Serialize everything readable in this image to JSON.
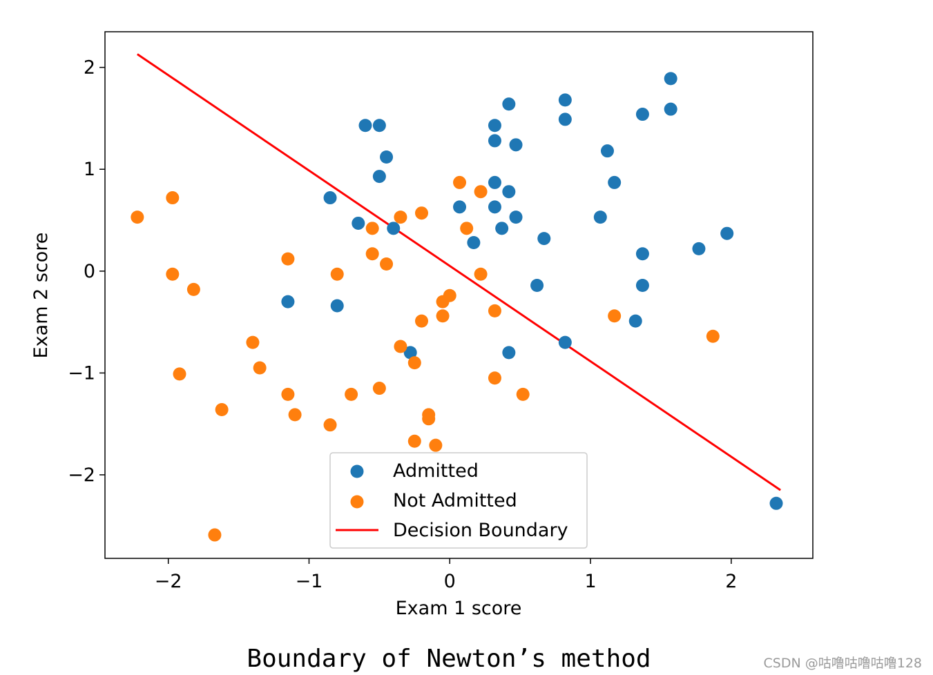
{
  "chart_data": {
    "type": "scatter",
    "title": "",
    "xlabel": "Exam 1 score",
    "ylabel": "Exam 2 score",
    "xlim": [
      -2.45,
      2.58
    ],
    "ylim": [
      -2.82,
      2.35
    ],
    "xticks": [
      -2,
      -1,
      0,
      1,
      2
    ],
    "yticks": [
      -2,
      -1,
      0,
      1,
      2
    ],
    "xtick_labels": [
      "−2",
      "−1",
      "0",
      "1",
      "2"
    ],
    "ytick_labels": [
      "−2",
      "−1",
      "0",
      "1",
      "2"
    ],
    "colors": {
      "admitted": "#1f77b4",
      "not_admitted": "#ff7f0e",
      "boundary": "#ff0000"
    },
    "legend_position": "lower-center",
    "series": [
      {
        "name": "Admitted",
        "kind": "scatter",
        "color": "#1f77b4",
        "points": [
          [
            -0.6,
            1.43
          ],
          [
            -0.5,
            1.43
          ],
          [
            -0.45,
            1.12
          ],
          [
            -0.5,
            0.93
          ],
          [
            -0.85,
            0.72
          ],
          [
            -0.65,
            0.47
          ],
          [
            -0.4,
            0.42
          ],
          [
            -1.15,
            -0.3
          ],
          [
            -0.8,
            -0.34
          ],
          [
            -0.28,
            -0.8
          ],
          [
            0.32,
            1.43
          ],
          [
            0.32,
            1.28
          ],
          [
            0.42,
            1.64
          ],
          [
            0.47,
            1.24
          ],
          [
            0.32,
            0.87
          ],
          [
            0.42,
            0.78
          ],
          [
            0.07,
            0.63
          ],
          [
            0.32,
            0.63
          ],
          [
            0.47,
            0.53
          ],
          [
            0.37,
            0.42
          ],
          [
            0.17,
            0.28
          ],
          [
            0.67,
            0.32
          ],
          [
            0.62,
            -0.14
          ],
          [
            0.42,
            -0.8
          ],
          [
            0.82,
            -0.7
          ],
          [
            0.82,
            1.68
          ],
          [
            0.82,
            1.49
          ],
          [
            1.37,
            1.54
          ],
          [
            1.57,
            1.89
          ],
          [
            1.57,
            1.59
          ],
          [
            1.12,
            1.18
          ],
          [
            1.17,
            0.87
          ],
          [
            1.07,
            0.53
          ],
          [
            1.37,
            0.17
          ],
          [
            1.37,
            -0.14
          ],
          [
            1.32,
            -0.49
          ],
          [
            1.77,
            0.22
          ],
          [
            1.97,
            0.37
          ],
          [
            2.32,
            -2.28
          ]
        ]
      },
      {
        "name": "Not Admitted",
        "kind": "scatter",
        "color": "#ff7f0e",
        "points": [
          [
            -2.22,
            0.53
          ],
          [
            -1.97,
            0.72
          ],
          [
            -1.97,
            -0.03
          ],
          [
            -1.82,
            -0.18
          ],
          [
            -1.92,
            -1.01
          ],
          [
            -1.67,
            -2.59
          ],
          [
            -1.62,
            -1.36
          ],
          [
            -1.4,
            -0.7
          ],
          [
            -1.35,
            -0.95
          ],
          [
            -1.15,
            0.12
          ],
          [
            -1.15,
            -1.21
          ],
          [
            -1.1,
            -1.41
          ],
          [
            -0.8,
            -0.03
          ],
          [
            -0.85,
            -1.51
          ],
          [
            -0.7,
            -1.21
          ],
          [
            -0.55,
            0.42
          ],
          [
            -0.55,
            0.17
          ],
          [
            -0.45,
            0.07
          ],
          [
            -0.35,
            0.53
          ],
          [
            -0.2,
            0.57
          ],
          [
            -0.5,
            -1.15
          ],
          [
            -0.35,
            -0.74
          ],
          [
            -0.25,
            -0.9
          ],
          [
            -0.2,
            -0.49
          ],
          [
            -0.05,
            -0.3
          ],
          [
            0.0,
            -0.24
          ],
          [
            -0.05,
            -0.44
          ],
          [
            -0.15,
            -1.41
          ],
          [
            -0.15,
            -1.45
          ],
          [
            -0.25,
            -1.67
          ],
          [
            -0.1,
            -1.71
          ],
          [
            0.07,
            0.87
          ],
          [
            0.22,
            0.78
          ],
          [
            0.12,
            0.42
          ],
          [
            0.22,
            -0.03
          ],
          [
            0.32,
            -0.39
          ],
          [
            0.32,
            -1.05
          ],
          [
            0.52,
            -1.21
          ],
          [
            1.17,
            -0.44
          ],
          [
            1.87,
            -0.64
          ]
        ]
      },
      {
        "name": "Decision Boundary",
        "kind": "line",
        "color": "#ff0000",
        "x": [
          -2.22,
          2.35
        ],
        "y": [
          2.13,
          -2.15
        ]
      }
    ]
  },
  "caption": "Boundary of Newton’s method",
  "watermark": "CSDN @咕噜咕噜咕噜128"
}
